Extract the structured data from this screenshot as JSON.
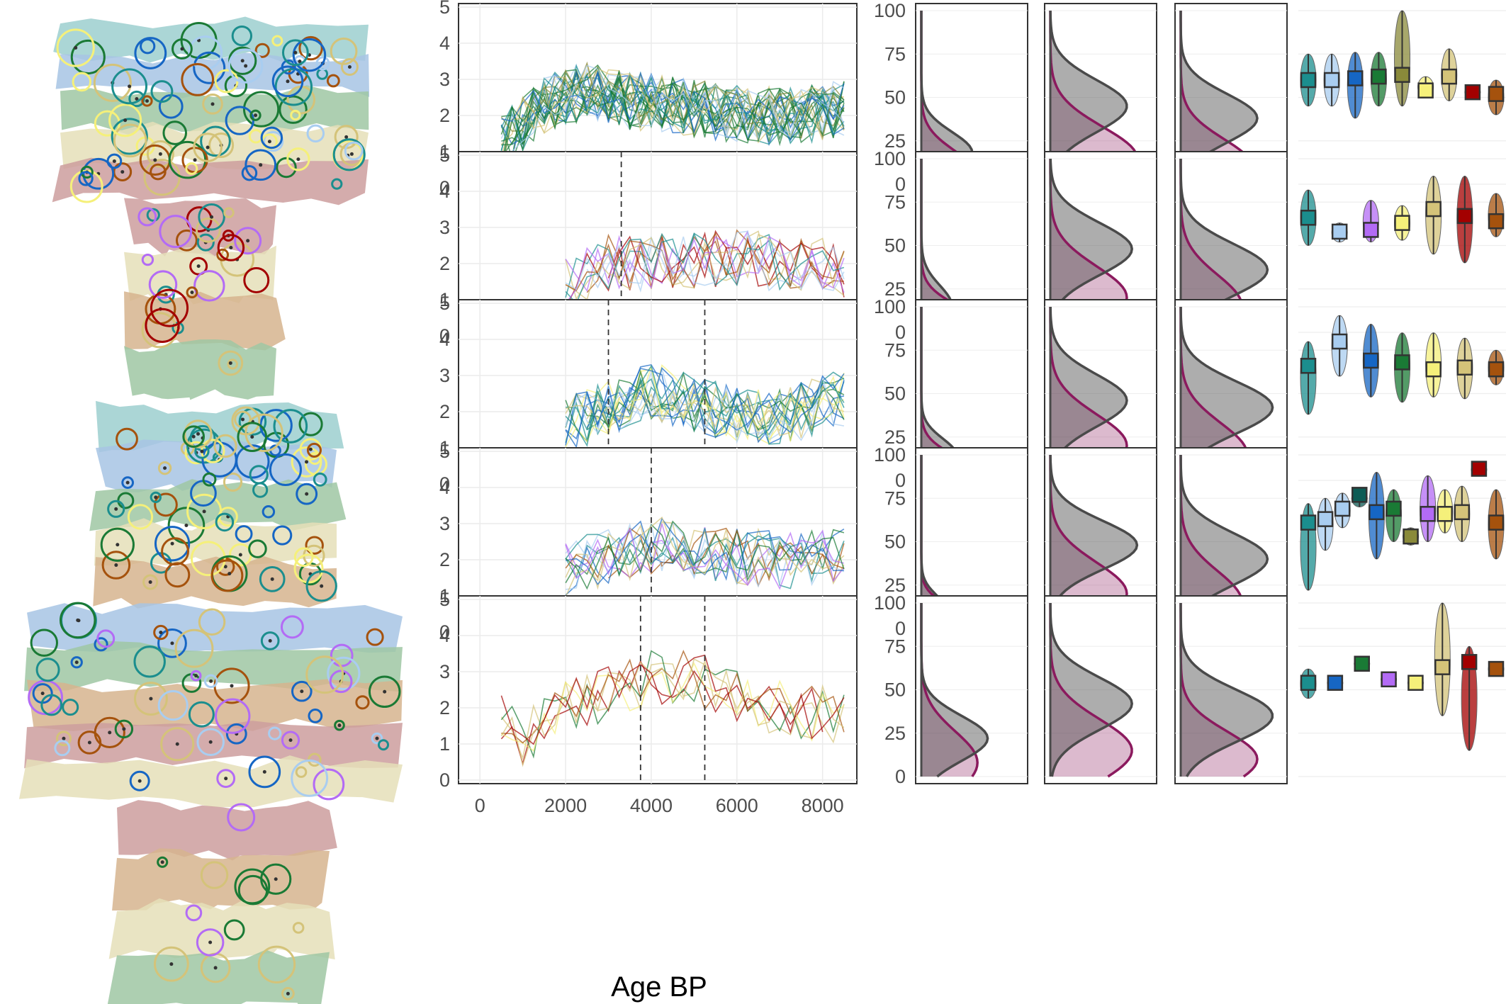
{
  "figure": {
    "xlabel": "Age BP",
    "region_count": 5
  },
  "colors": {
    "teal": "#1b8e8e",
    "light_blue": "#a9cdf0",
    "blue": "#1666c4",
    "dark_green": "#1a7a35",
    "dark_teal": "#0d5c55",
    "olive": "#8a8a3a",
    "purple": "#b36bf5",
    "pale_yellow": "#f5f07a",
    "khaki": "#d4c379",
    "dark_red": "#a30000",
    "brown": "#a5520d",
    "density_purple": "#8b1a5e",
    "density_dark": "#4a4a4a",
    "density_light": "#bdbdbd",
    "map_ocean": "#ffffff",
    "map_tundra": "#9ccfcf",
    "map_boreal": "#a7c4e4",
    "map_temperate": "#9fc7a3",
    "map_desert": "#d6b48e",
    "map_tropical": "#cc9d9d",
    "map_grass": "#e5dfb8"
  },
  "chart_data": [
    {
      "type": "line",
      "panel": "time-series",
      "xlim": [
        -500,
        8800
      ],
      "ylim": [
        -0.1,
        5.1
      ],
      "xticks": [
        "0",
        "2000",
        "4000",
        "6000",
        "8000"
      ],
      "yticks": [
        "0",
        "1",
        "2",
        "3",
        "4",
        "5"
      ],
      "regions": [
        {
          "name": "",
          "start": 500,
          "mean_profile": [
            [
              500,
              1.2
            ],
            [
              1500,
              2.3
            ],
            [
              2500,
              2.7
            ],
            [
              3500,
              2.4
            ],
            [
              4500,
              2.3
            ],
            [
              5500,
              2.1
            ],
            [
              6500,
              2.0
            ],
            [
              7500,
              2.0
            ],
            [
              8500,
              2.2
            ]
          ],
          "line_count": 30,
          "vlines": [],
          "palette": [
            "#1a7a35",
            "#1a7a35",
            "#1666c4",
            "#1b8e8e",
            "#d4c379",
            "#a9cdf0",
            "#8a8a3a",
            "#1a7a35"
          ]
        },
        {
          "name": "",
          "start": 2000,
          "mean_profile": [
            [
              2000,
              1.5
            ],
            [
              3000,
              2.0
            ],
            [
              4000,
              2.0
            ],
            [
              5000,
              2.1
            ],
            [
              6000,
              2.2
            ],
            [
              7000,
              2.0
            ],
            [
              8000,
              1.9
            ],
            [
              8500,
              1.8
            ]
          ],
          "line_count": 12,
          "vlines": [
            3300
          ],
          "palette": [
            "#a30000",
            "#d4c379",
            "#a5520d",
            "#1b8e8e",
            "#b36bf5",
            "#a9cdf0"
          ]
        },
        {
          "name": "",
          "start": 2000,
          "mean_profile": [
            [
              2000,
              1.6
            ],
            [
              3000,
              2.1
            ],
            [
              4000,
              2.6
            ],
            [
              5000,
              2.2
            ],
            [
              6000,
              1.9
            ],
            [
              7000,
              1.8
            ],
            [
              8000,
              2.2
            ],
            [
              8500,
              2.4
            ]
          ],
          "line_count": 20,
          "vlines": [
            3000,
            5250
          ],
          "palette": [
            "#1b8e8e",
            "#1666c4",
            "#1a7a35",
            "#d4c379",
            "#f5f07a",
            "#a9cdf0"
          ]
        },
        {
          "name": "",
          "start": 2000,
          "mean_profile": [
            [
              2000,
              1.7
            ],
            [
              3000,
              2.1
            ],
            [
              4000,
              2.4
            ],
            [
              5000,
              2.3
            ],
            [
              6000,
              2.1
            ],
            [
              7000,
              2.0
            ],
            [
              8000,
              2.0
            ],
            [
              8500,
              2.2
            ]
          ],
          "line_count": 14,
          "vlines": [
            4000
          ],
          "palette": [
            "#a5520d",
            "#1b8e8e",
            "#a9cdf0",
            "#1666c4",
            "#d4c379",
            "#b36bf5",
            "#1a7a35"
          ]
        },
        {
          "name": "",
          "start": 500,
          "mean_profile": [
            [
              500,
              1.8
            ],
            [
              1000,
              1.2
            ],
            [
              2000,
              2.0
            ],
            [
              3000,
              2.4
            ],
            [
              4000,
              2.8
            ],
            [
              5000,
              2.8
            ],
            [
              6000,
              2.3
            ],
            [
              7000,
              2.0
            ],
            [
              8000,
              1.8
            ],
            [
              8500,
              1.6
            ]
          ],
          "line_count": 7,
          "vlines": [
            3750,
            5250
          ],
          "palette": [
            "#d4c379",
            "#a30000",
            "#1a7a35",
            "#f5f07a",
            "#a5520d"
          ]
        }
      ]
    },
    {
      "type": "area",
      "panel": "density-columns",
      "ylim": [
        0,
        100
      ],
      "yticks": [
        "0",
        "25",
        "50",
        "75",
        "100"
      ],
      "columns": 3,
      "note": "each cell shows a purple-filled density and a gray-filled density along the 0-100 axis, with outline curves",
      "cells": [
        [
          {
            "purple_mode": 5,
            "purple_spread": 14,
            "gray_mode": 18,
            "gray_spread": 12,
            "purple_peak": 0.55,
            "gray_peak": 0.5
          },
          {
            "purple_mode": 15,
            "purple_spread": 18,
            "gray_mode": 45,
            "gray_spread": 15,
            "purple_peak": 0.85,
            "gray_peak": 0.75
          },
          {
            "purple_mode": 10,
            "purple_spread": 16,
            "gray_mode": 38,
            "gray_spread": 14,
            "purple_peak": 0.7,
            "gray_peak": 0.75
          }
        ],
        [
          {
            "purple_mode": 3,
            "purple_spread": 12,
            "gray_mode": 15,
            "gray_spread": 12,
            "purple_peak": 0.6,
            "gray_peak": 0.3
          },
          {
            "purple_mode": 20,
            "purple_spread": 18,
            "gray_mode": 48,
            "gray_spread": 15,
            "purple_peak": 0.75,
            "gray_peak": 0.8
          },
          {
            "purple_mode": 15,
            "purple_spread": 18,
            "gray_mode": 36,
            "gray_spread": 15,
            "purple_peak": 0.6,
            "gray_peak": 0.85
          }
        ],
        [
          {
            "purple_mode": 3,
            "purple_spread": 11,
            "gray_mode": 14,
            "gray_spread": 10,
            "purple_peak": 0.55,
            "gray_peak": 0.35
          },
          {
            "purple_mode": 20,
            "purple_spread": 18,
            "gray_mode": 46,
            "gray_spread": 15,
            "purple_peak": 0.75,
            "gray_peak": 0.75
          },
          {
            "purple_mode": 15,
            "purple_spread": 18,
            "gray_mode": 42,
            "gray_spread": 15,
            "purple_peak": 0.65,
            "gray_peak": 0.9
          }
        ],
        [
          {
            "purple_mode": 2,
            "purple_spread": 10,
            "gray_mode": 10,
            "gray_spread": 9,
            "purple_peak": 0.5,
            "gray_peak": 0.25
          },
          {
            "purple_mode": 20,
            "purple_spread": 18,
            "gray_mode": 48,
            "gray_spread": 14,
            "purple_peak": 0.75,
            "gray_peak": 0.85
          },
          {
            "purple_mode": 15,
            "purple_spread": 18,
            "gray_mode": 40,
            "gray_spread": 15,
            "purple_peak": 0.6,
            "gray_peak": 0.85
          }
        ],
        [
          {
            "purple_mode": 8,
            "purple_spread": 18,
            "gray_mode": 22,
            "gray_spread": 13,
            "purple_peak": 0.55,
            "gray_peak": 0.65
          },
          {
            "purple_mode": 15,
            "purple_spread": 18,
            "gray_mode": 42,
            "gray_spread": 15,
            "purple_peak": 0.8,
            "gray_peak": 0.8
          },
          {
            "purple_mode": 10,
            "purple_spread": 16,
            "gray_mode": 35,
            "gray_spread": 15,
            "purple_peak": 0.75,
            "gray_peak": 0.9
          }
        ]
      ]
    },
    {
      "type": "violin",
      "panel": "group-violins",
      "ylim": [
        0,
        100
      ],
      "note": "each entry: group colour, median value, and spread of violin in data units",
      "regions": [
        [
          {
            "color": "#1b8e8e",
            "median": 60,
            "lo": 45,
            "hi": 75
          },
          {
            "color": "#a9cdf0",
            "median": 60,
            "lo": 45,
            "hi": 75
          },
          {
            "color": "#1666c4",
            "median": 61,
            "lo": 38,
            "hi": 76
          },
          {
            "color": "#1a7a35",
            "median": 62,
            "lo": 45,
            "hi": 76
          },
          {
            "color": "#8a8a3a",
            "median": 63,
            "lo": 45,
            "hi": 100
          },
          {
            "color": "#f5f07a",
            "median": 54,
            "lo": 50,
            "hi": 62
          },
          {
            "color": "#d4c379",
            "median": 62,
            "lo": 48,
            "hi": 78
          },
          {
            "color": "#a30000",
            "median": 53,
            "lo": 50,
            "hi": 56
          },
          {
            "color": "#a5520d",
            "median": 52,
            "lo": 40,
            "hi": 60
          }
        ],
        [
          {
            "color": "#1b8e8e",
            "median": 66,
            "lo": 50,
            "hi": 82
          },
          {
            "color": "#a9cdf0",
            "median": 58,
            "lo": 52,
            "hi": 63
          },
          {
            "color": "#b36bf5",
            "median": 59,
            "lo": 52,
            "hi": 76
          },
          {
            "color": "#f5f07a",
            "median": 63,
            "lo": 53,
            "hi": 73
          },
          {
            "color": "#d4c379",
            "median": 71,
            "lo": 45,
            "hi": 90
          },
          {
            "color": "#a30000",
            "median": 67,
            "lo": 40,
            "hi": 90
          },
          {
            "color": "#a5520d",
            "median": 64,
            "lo": 55,
            "hi": 80
          }
        ],
        [
          {
            "color": "#1b8e8e",
            "median": 66,
            "lo": 38,
            "hi": 80
          },
          {
            "color": "#a9cdf0",
            "median": 80,
            "lo": 60,
            "hi": 95
          },
          {
            "color": "#1666c4",
            "median": 69,
            "lo": 48,
            "hi": 90
          },
          {
            "color": "#1a7a35",
            "median": 68,
            "lo": 45,
            "hi": 85
          },
          {
            "color": "#f5f07a",
            "median": 64,
            "lo": 48,
            "hi": 85
          },
          {
            "color": "#d4c379",
            "median": 65,
            "lo": 47,
            "hi": 82
          },
          {
            "color": "#a5520d",
            "median": 64,
            "lo": 55,
            "hi": 75
          }
        ],
        [
          {
            "color": "#1b8e8e",
            "median": 61,
            "lo": 22,
            "hi": 72
          },
          {
            "color": "#a9cdf0",
            "median": 63,
            "lo": 45,
            "hi": 75
          },
          {
            "color": "#a9cdf0",
            "median": 69,
            "lo": 58,
            "hi": 78
          },
          {
            "color": "#0d5c55",
            "median": 77,
            "lo": 70,
            "hi": 80
          },
          {
            "color": "#1666c4",
            "median": 67,
            "lo": 40,
            "hi": 90
          },
          {
            "color": "#1a7a35",
            "median": 69,
            "lo": 50,
            "hi": 80
          },
          {
            "color": "#8a8a3a",
            "median": 53,
            "lo": 48,
            "hi": 58
          },
          {
            "color": "#b36bf5",
            "median": 66,
            "lo": 50,
            "hi": 88
          },
          {
            "color": "#f5f07a",
            "median": 66,
            "lo": 55,
            "hi": 80
          },
          {
            "color": "#d4c379",
            "median": 67,
            "lo": 50,
            "hi": 82
          },
          {
            "color": "#a30000",
            "median": 92,
            "lo": 88,
            "hi": 95
          },
          {
            "color": "#a5520d",
            "median": 61,
            "lo": 40,
            "hi": 80
          }
        ],
        [
          {
            "color": "#1b8e8e",
            "median": 54,
            "lo": 45,
            "hi": 62
          },
          {
            "color": "#1666c4",
            "median": 54,
            "lo": 51,
            "hi": 57
          },
          {
            "color": "#1a7a35",
            "median": 65,
            "lo": 62,
            "hi": 68
          },
          {
            "color": "#b36bf5",
            "median": 56,
            "lo": 53,
            "hi": 59
          },
          {
            "color": "#f5f07a",
            "median": 54,
            "lo": 51,
            "hi": 57
          },
          {
            "color": "#d4c379",
            "median": 63,
            "lo": 35,
            "hi": 100
          },
          {
            "color": "#a30000",
            "median": 66,
            "lo": 15,
            "hi": 75
          },
          {
            "color": "#a5520d",
            "median": 62,
            "lo": 58,
            "hi": 66
          }
        ]
      ]
    }
  ]
}
